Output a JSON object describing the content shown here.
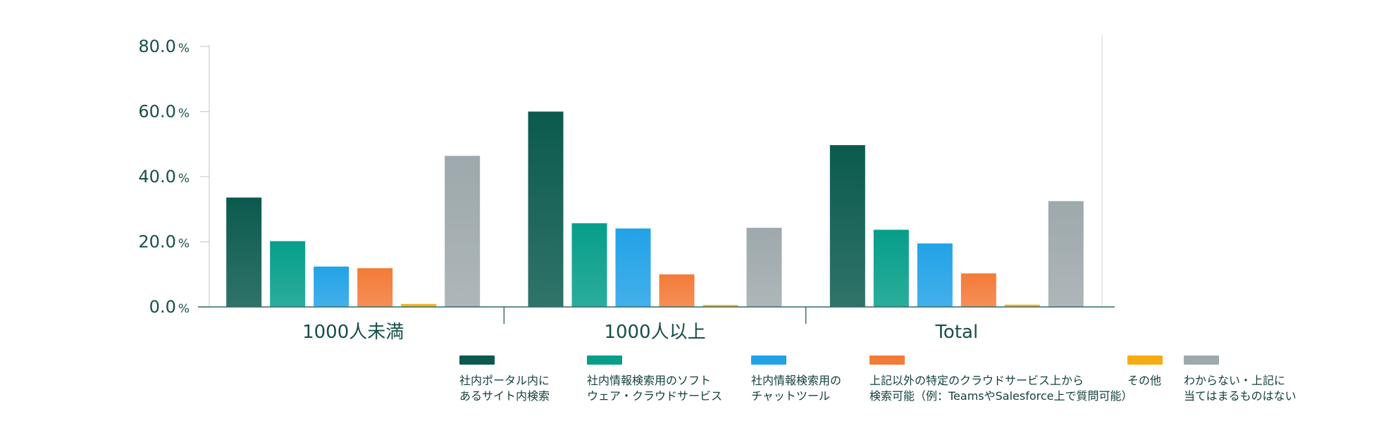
{
  "chart_data": {
    "type": "bar",
    "categories": [
      "1000人未満",
      "1000人以上",
      "Total"
    ],
    "series": [
      {
        "name": "社内ポータル内に\nあるサイト内検索",
        "values": [
          33.6,
          60.0,
          49.7
        ],
        "color": "#0b5a4e"
      },
      {
        "name": "社内情報検索用のソフト\nウェア・クラウドサービス",
        "values": [
          20.2,
          25.7,
          23.7
        ],
        "color": "#069e89"
      },
      {
        "name": "社内情報検索用の\nチャットツール",
        "values": [
          12.4,
          24.1,
          19.5
        ],
        "color": "#22a2e6"
      },
      {
        "name": "上記以外の特定のクラウドサービス上から\n検索可能（例：TeamsやSalesforce上で質問可能）",
        "values": [
          11.9,
          10.0,
          10.3
        ],
        "color": "#f37b38"
      },
      {
        "name": "その他",
        "values": [
          0.9,
          0.6,
          0.7
        ],
        "color": "#f5ac14"
      },
      {
        "name": "わからない・上記に\n当てはまるものはない",
        "values": [
          46.4,
          24.3,
          32.5
        ],
        "color": "#9ea9ad"
      }
    ],
    "y_ticks": [
      "0.0",
      "20.0",
      "40.0",
      "60.0",
      "80.0"
    ],
    "y_unit": "%",
    "ylim": [
      0,
      80
    ],
    "xlabel": "",
    "ylabel": "",
    "title": "",
    "legend_position": "bottom",
    "grid": false
  }
}
